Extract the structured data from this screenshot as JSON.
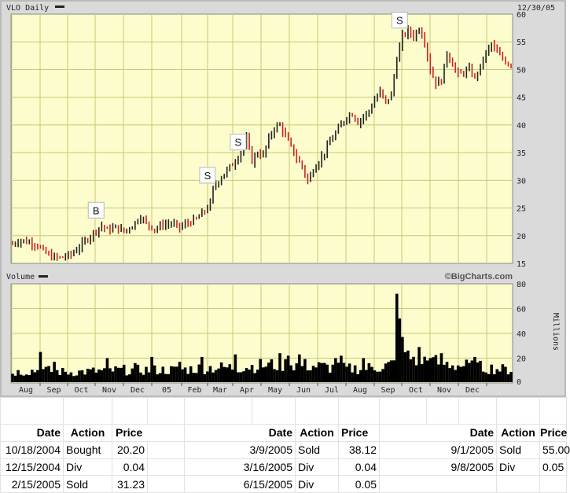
{
  "chart_data": [
    {
      "type": "candlestick",
      "title": "VLO Daily",
      "date_label": "12/30/05",
      "ylim": [
        15,
        60
      ],
      "y_ticks": [
        15,
        20,
        25,
        30,
        35,
        40,
        45,
        50,
        55,
        60
      ],
      "x_labels": [
        "Aug",
        "Sep",
        "Oct",
        "Nov",
        "Dec",
        "05",
        "Feb",
        "Mar",
        "Apr",
        "May",
        "Jun",
        "Jul",
        "Aug",
        "Sep",
        "Oct",
        "Nov",
        "Dec"
      ],
      "price_path": [
        [
          0,
          18.5
        ],
        [
          3,
          19.2
        ],
        [
          6,
          18.8
        ],
        [
          9,
          18.3
        ],
        [
          11,
          17.2
        ],
        [
          14,
          16.2
        ],
        [
          17,
          16.0
        ],
        [
          21,
          16.6
        ],
        [
          24,
          18.0
        ],
        [
          27,
          19.5
        ],
        [
          30,
          21.0
        ],
        [
          32,
          21.8
        ],
        [
          34,
          21.0
        ],
        [
          37,
          21.5
        ],
        [
          40,
          20.8
        ],
        [
          43,
          21.8
        ],
        [
          46,
          23.5
        ],
        [
          48,
          22.2
        ],
        [
          51,
          21.2
        ],
        [
          54,
          22.0
        ],
        [
          57,
          22.2
        ],
        [
          60,
          21.5
        ],
        [
          63,
          22.3
        ],
        [
          66,
          23.0
        ],
        [
          69,
          24.5
        ],
        [
          71,
          25.8
        ],
        [
          72,
          28.5
        ],
        [
          74,
          30.0
        ],
        [
          77,
          31.8
        ],
        [
          80,
          33.5
        ],
        [
          83,
          36.0
        ],
        [
          84,
          37.5
        ],
        [
          86,
          33.5
        ],
        [
          88,
          35.0
        ],
        [
          90,
          34.5
        ],
        [
          92,
          37.5
        ],
        [
          94,
          39.5
        ],
        [
          96,
          40.0
        ],
        [
          98,
          38.0
        ],
        [
          100,
          36.0
        ],
        [
          102,
          34.0
        ],
        [
          104,
          32.5
        ],
        [
          106,
          29.8
        ],
        [
          108,
          32.0
        ],
        [
          110,
          33.5
        ],
        [
          112,
          35.0
        ],
        [
          114,
          37.0
        ],
        [
          116,
          38.5
        ],
        [
          118,
          40.0
        ],
        [
          120,
          41.5
        ],
        [
          122,
          42.0
        ],
        [
          124,
          40.5
        ],
        [
          126,
          41.5
        ],
        [
          128,
          42.5
        ],
        [
          130,
          44.5
        ],
        [
          132,
          46.0
        ],
        [
          134,
          44.0
        ],
        [
          136,
          45.5
        ],
        [
          138,
          52.0
        ],
        [
          140,
          56.0
        ],
        [
          142,
          57.0
        ],
        [
          144,
          56.0
        ],
        [
          146,
          57.5
        ],
        [
          148,
          55.0
        ],
        [
          150,
          50.0
        ],
        [
          152,
          47.5
        ],
        [
          154,
          48.0
        ],
        [
          156,
          53.0
        ],
        [
          158,
          51.0
        ],
        [
          160,
          49.0
        ],
        [
          162,
          49.5
        ],
        [
          164,
          50.0
        ],
        [
          166,
          48.5
        ],
        [
          168,
          50.5
        ],
        [
          170,
          53.0
        ],
        [
          172,
          54.5
        ],
        [
          174,
          53.0
        ],
        [
          176,
          52.0
        ],
        [
          178,
          51.0
        ]
      ],
      "annotations": [
        {
          "label": "B",
          "x": 30,
          "y": 21.2
        },
        {
          "label": "S",
          "x": 70,
          "y": 27.5
        },
        {
          "label": "S",
          "x": 81,
          "y": 33.5
        },
        {
          "label": "S",
          "x": 139,
          "y": 55.5
        }
      ]
    },
    {
      "type": "bar",
      "title": "Volume",
      "watermark": "©BigCharts.com",
      "ylabel": "Millions",
      "ylim": [
        0,
        80
      ],
      "y_ticks": [
        0,
        20,
        40,
        60,
        80
      ],
      "volume_profile": [
        [
          0,
          9
        ],
        [
          10,
          11
        ],
        [
          20,
          9
        ],
        [
          30,
          10
        ],
        [
          40,
          11
        ],
        [
          50,
          11
        ],
        [
          60,
          11
        ],
        [
          70,
          13
        ],
        [
          80,
          13
        ],
        [
          90,
          15
        ],
        [
          100,
          16
        ],
        [
          110,
          14
        ],
        [
          120,
          12
        ],
        [
          130,
          13
        ],
        [
          137,
          16
        ],
        [
          138,
          48
        ],
        [
          140,
          30
        ],
        [
          142,
          22
        ],
        [
          150,
          18
        ],
        [
          160,
          15
        ],
        [
          170,
          13
        ],
        [
          178,
          11
        ]
      ],
      "spikes": [
        [
          10,
          25
        ],
        [
          15,
          17
        ],
        [
          34,
          20
        ],
        [
          44,
          16
        ],
        [
          50,
          21
        ],
        [
          60,
          17
        ],
        [
          68,
          21
        ],
        [
          80,
          23
        ],
        [
          96,
          24
        ],
        [
          99,
          22
        ],
        [
          103,
          23
        ],
        [
          116,
          20
        ],
        [
          118,
          22
        ],
        [
          126,
          20
        ],
        [
          138,
          72
        ],
        [
          139,
          52
        ],
        [
          146,
          29
        ],
        [
          150,
          20
        ],
        [
          154,
          24
        ],
        [
          166,
          21
        ]
      ]
    }
  ],
  "trades": {
    "headers": {
      "date": "Date",
      "action": "Action",
      "price": "Price"
    },
    "groups": [
      [
        {
          "date": "10/18/2004",
          "action": "Bought",
          "price": "20.20"
        },
        {
          "date": "12/15/2004",
          "action": "Div",
          "price": "0.04"
        },
        {
          "date": "2/15/2005",
          "action": "Sold",
          "price": "31.23"
        }
      ],
      [
        {
          "date": "3/9/2005",
          "action": "Sold",
          "price": "38.12"
        },
        {
          "date": "3/16/2005",
          "action": "Div",
          "price": "0.04"
        },
        {
          "date": "6/15/2005",
          "action": "Div",
          "price": "0.05"
        }
      ],
      [
        {
          "date": "9/1/2005",
          "action": "Sold",
          "price": "55.00"
        },
        {
          "date": "9/8/2005",
          "action": "Div",
          "price": "0.05"
        }
      ]
    ]
  },
  "colors": {
    "plot_bg": "#fcfccc",
    "grid": "#c8c87a",
    "frame_bg": "#dadada",
    "price_up": "#222222",
    "price_down": "#cc2222",
    "volume": "#000000"
  }
}
